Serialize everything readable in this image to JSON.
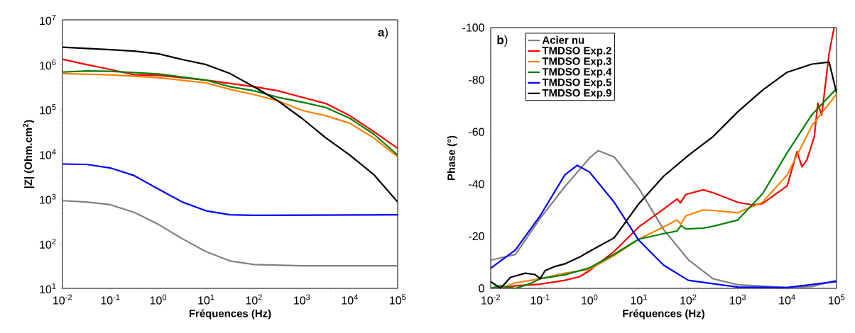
{
  "chart_data": [
    {
      "type": "line",
      "xlabel": "Fréquences (Hz)",
      "ylabel": "|Z| (Ohm.cm$^{2}$)",
      "annotations": [
        "**a**)"
      ],
      "log": "xy",
      "xlim": [
        0.01,
        100000
      ],
      "ylim": [
        10,
        10000000
      ],
      "xticks": [
        {
          "value": 0.01,
          "label": "10$^{-2}$"
        },
        {
          "value": 0.1,
          "label": "10$^{-1}$"
        },
        {
          "value": 1,
          "label": "10$^{0}$"
        },
        {
          "value": 10,
          "label": "10$^{1}$"
        },
        {
          "value": 100,
          "label": "10$^{2}$"
        },
        {
          "value": 1000,
          "label": "10$^{3}$"
        },
        {
          "value": 10000,
          "label": "10$^{4}$"
        },
        {
          "value": 100000,
          "label": "10$^{5}$"
        }
      ],
      "yticks": [
        {
          "value": 10,
          "label": "10$^{1}$"
        },
        {
          "value": 100,
          "label": "10$^{2}$"
        },
        {
          "value": 1000,
          "label": "10$^{3}$"
        },
        {
          "value": 10000,
          "label": "10$^{4}$"
        },
        {
          "value": 100000,
          "label": "10$^{5}$"
        },
        {
          "value": 1000000,
          "label": "10$^{6}$"
        },
        {
          "value": 10000000,
          "label": "10$^{7}$"
        }
      ],
      "series": [
        {
          "color": "#808080",
          "x": [
            0.01,
            0.0316,
            0.1,
            0.316,
            1,
            3.16,
            10,
            31.6,
            100,
            1000,
            100000
          ],
          "values": [
            910,
            850,
            740,
            500,
            270,
            129,
            66,
            41,
            34,
            32,
            32
          ]
        },
        {
          "color": "#ff0000",
          "x": [
            0.01,
            0.0316,
            0.1,
            0.316,
            1,
            10,
            100,
            316,
            1000,
            3162,
            10000,
            31620,
            100000
          ],
          "values": [
            1320000,
            1000000,
            780000,
            590000,
            575000,
            450000,
            320000,
            260000,
            186000,
            135000,
            72000,
            32000,
            13500
          ]
        },
        {
          "color": "#ff8000",
          "x": [
            0.01,
            0.1,
            1,
            10,
            31.6,
            100,
            316,
            1000,
            3162,
            10000,
            31620,
            100000
          ],
          "values": [
            630000,
            590000,
            510000,
            390000,
            280000,
            214000,
            155000,
            95000,
            72000,
            49000,
            23000,
            8700
          ]
        },
        {
          "color": "#008000",
          "x": [
            0.01,
            0.0316,
            0.1,
            1,
            10,
            31.6,
            100,
            316,
            1000,
            3162,
            10000,
            31620,
            100000
          ],
          "values": [
            680000,
            720000,
            710000,
            620000,
            450000,
            320000,
            260000,
            186000,
            145000,
            110000,
            63000,
            28000,
            9500
          ]
        },
        {
          "color": "#0000ff",
          "x": [
            0.01,
            0.0316,
            0.1,
            0.316,
            1,
            3.16,
            10,
            31.6,
            100,
            100000
          ],
          "values": [
            6000,
            5900,
            4900,
            3300,
            1660,
            850,
            540,
            440,
            430,
            440
          ]
        },
        {
          "color": "#000000",
          "x": [
            0.01,
            0.0316,
            0.1,
            0.316,
            1,
            3.16,
            10,
            31.6,
            100,
            316,
            1000,
            3162,
            10000,
            31620,
            100000
          ],
          "values": [
            2450000,
            2300000,
            2150000,
            2000000,
            1750000,
            1300000,
            1000000,
            630000,
            320000,
            155000,
            63000,
            23000,
            9500,
            3500,
            850
          ]
        }
      ]
    },
    {
      "type": "line",
      "xlabel": "Fréquences (Hz)",
      "ylabel": "Phase (°)",
      "annotations": [
        "**b**)"
      ],
      "log": "x",
      "legend": "top left",
      "xlim": [
        0.01,
        100000
      ],
      "ylim": [
        0,
        -100
      ],
      "xticks": [
        {
          "value": 0.01,
          "label": "10$^{-2}$"
        },
        {
          "value": 0.1,
          "label": "10$^{-1}$"
        },
        {
          "value": 1,
          "label": "10$^{0}$"
        },
        {
          "value": 10,
          "label": "10$^{1}$"
        },
        {
          "value": 100,
          "label": "10$^{2}$"
        },
        {
          "value": 1000,
          "label": "10$^{3}$"
        },
        {
          "value": 10000,
          "label": "10$^{4}$"
        },
        {
          "value": 100000,
          "label": "10$^{5}$"
        }
      ],
      "yticks": [
        -100,
        -80,
        -60,
        -40,
        -20,
        0
      ],
      "series": [
        {
          "name": "Acier nu",
          "color": "#808080",
          "x": [
            0.01,
            0.0316,
            0.1,
            0.316,
            1,
            1.5,
            3.16,
            10,
            31.6,
            100,
            316,
            1000,
            10000,
            31620,
            100000
          ],
          "values": [
            -10.8,
            -13,
            -26.8,
            -39,
            -50,
            -52.8,
            -50.4,
            -38.3,
            -22.6,
            -11,
            -3.7,
            -1.4,
            -0.3,
            -0.7,
            -3.1
          ]
        },
        {
          "name": "TMDSO Exp.2",
          "color": "#ff0000",
          "x": [
            0.0158,
            0.0316,
            0.1,
            0.316,
            0.631,
            1,
            3.16,
            10,
            31.6,
            59,
            69,
            89,
            200,
            316,
            1000,
            2000,
            3162,
            10000,
            15850,
            19950,
            25120,
            35480,
            41690,
            50120,
            70790,
            89130
          ],
          "values": [
            0,
            -1,
            -1.6,
            -3.1,
            -4.5,
            -6.8,
            -14.2,
            -23.6,
            -30.4,
            -34.3,
            -32.8,
            -36,
            -37.8,
            -36.7,
            -33,
            -32,
            -32.5,
            -39.3,
            -52.4,
            -46.6,
            -49.3,
            -58.2,
            -71,
            -66.5,
            -90.2,
            -100
          ]
        },
        {
          "name": "TMDSO Exp.3",
          "color": "#ff8000",
          "x": [
            0.0158,
            0.0316,
            0.1,
            0.316,
            1,
            3.16,
            10,
            31.6,
            59,
            71,
            89,
            200,
            316,
            1000,
            3162,
            10000,
            31620,
            100000
          ],
          "values": [
            0,
            -2.1,
            -3.7,
            -5.8,
            -7.3,
            -12.6,
            -18.9,
            -23.6,
            -26.2,
            -24.7,
            -27.8,
            -30.1,
            -29.9,
            -29,
            -33,
            -43.5,
            -62.4,
            -74.5
          ]
        },
        {
          "name": "TMDSO Exp.4",
          "color": "#008000",
          "x": [
            0.01,
            0.0158,
            0.0316,
            0.0631,
            0.1,
            0.316,
            1,
            3.16,
            10,
            31.6,
            59,
            71,
            89,
            200,
            316,
            1000,
            3162,
            10000,
            31620,
            100000
          ],
          "values": [
            0,
            -1,
            0,
            -1.8,
            -3.7,
            -5.2,
            -7.9,
            -13.1,
            -18.9,
            -21,
            -22,
            -24.1,
            -22.8,
            -23.1,
            -23.8,
            -26.2,
            -36.2,
            -52,
            -66.6,
            -76.6
          ]
        },
        {
          "name": "TMDSO Exp.5",
          "color": "#0000ff",
          "x": [
            0.01,
            0.0316,
            0.1,
            0.316,
            0.562,
            1,
            3.16,
            10,
            31.6,
            100,
            1000,
            10000,
            100000
          ],
          "values": [
            -7.7,
            -14.7,
            -27.8,
            -43.5,
            -47.2,
            -44.6,
            -33,
            -18.4,
            -8.9,
            -3.1,
            -0.5,
            -0.3,
            -2.6
          ]
        },
        {
          "name": "TMDSO Exp.9",
          "color": "#000000",
          "x": [
            0.01,
            0.0158,
            0.0251,
            0.0501,
            0.0794,
            0.1,
            0.126,
            0.2,
            0.316,
            0.631,
            1,
            3.16,
            10,
            31.6,
            100,
            316,
            1000,
            3162,
            10000,
            31620,
            70790,
            100000
          ],
          "values": [
            -2.6,
            0,
            -4.2,
            -5.8,
            -5.3,
            -3.7,
            -6.8,
            -8.4,
            -9.4,
            -12,
            -14.2,
            -19.4,
            -32.5,
            -43,
            -51,
            -58.2,
            -67.7,
            -76,
            -82.9,
            -86,
            -86.8,
            -75
          ]
        }
      ]
    }
  ]
}
